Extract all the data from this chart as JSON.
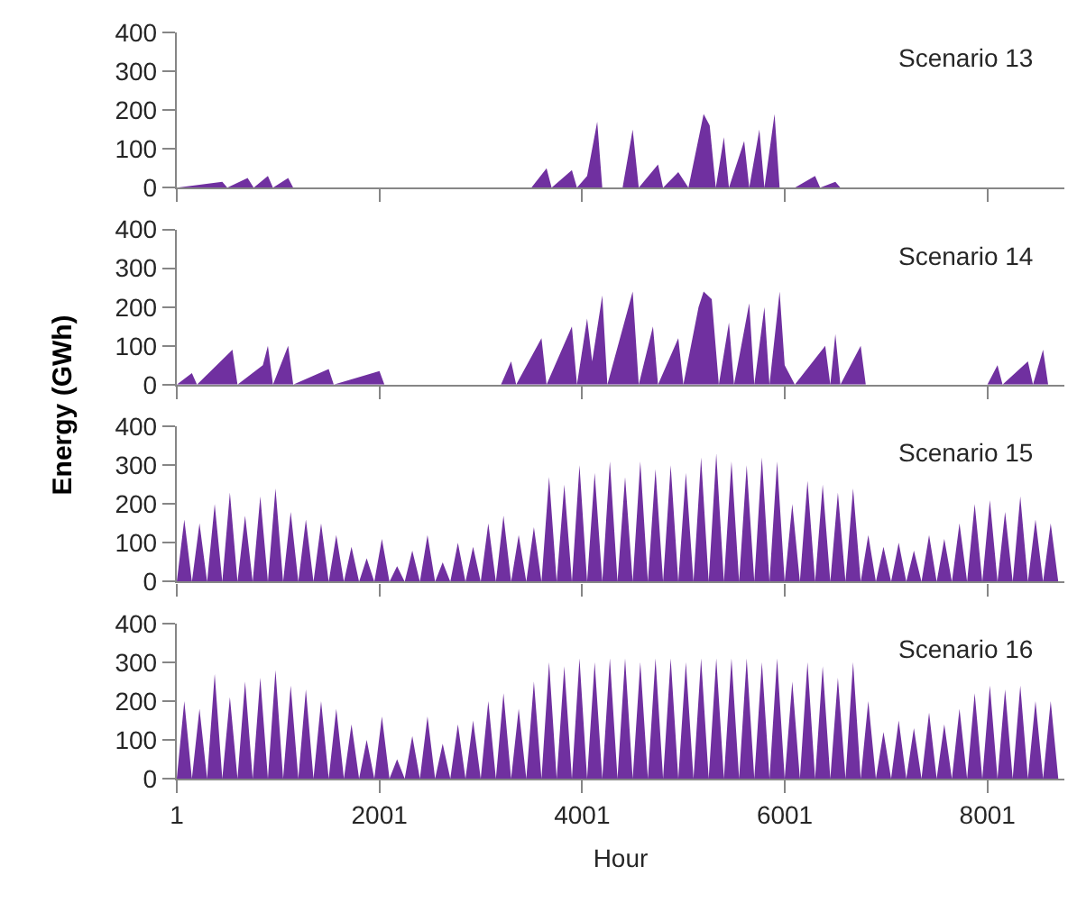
{
  "chart_data": [
    {
      "type": "area",
      "x": [
        1,
        450,
        500,
        700,
        760,
        900,
        950,
        1100,
        1150,
        3500,
        3650,
        3700,
        3900,
        3950,
        4050,
        4150,
        4200,
        4400,
        4500,
        4560,
        4750,
        4800,
        4950,
        5050,
        5200,
        5260,
        5320,
        5400,
        5450,
        5600,
        5650,
        5750,
        5800,
        5900,
        5950,
        6100,
        6300,
        6350,
        6500,
        6550,
        8760
      ],
      "series": [
        {
          "color": "#7030a0",
          "values": [
            0,
            15,
            0,
            25,
            0,
            30,
            0,
            25,
            0,
            0,
            50,
            0,
            45,
            0,
            30,
            170,
            0,
            0,
            150,
            0,
            60,
            0,
            40,
            0,
            190,
            160,
            0,
            130,
            0,
            120,
            0,
            150,
            0,
            190,
            0,
            0,
            30,
            0,
            15,
            0,
            0
          ]
        }
      ],
      "xlim": [
        1,
        8760
      ],
      "xticks": [
        {
          "value": 1,
          "label": null
        },
        {
          "value": 2001,
          "label": null
        },
        {
          "value": 4001,
          "label": null
        },
        {
          "value": 6001,
          "label": null
        },
        {
          "value": 8001,
          "label": null
        }
      ],
      "ylim": [
        0,
        400
      ],
      "yticks": [
        0,
        100,
        200,
        300,
        400
      ],
      "tick_labels": "y",
      "annotations": [
        "Scenario 13"
      ]
    },
    {
      "type": "area",
      "x": [
        1,
        150,
        200,
        550,
        600,
        850,
        900,
        950,
        1100,
        1150,
        1500,
        1550,
        2001,
        2050,
        3200,
        3300,
        3350,
        3600,
        3650,
        3900,
        3950,
        4050,
        4100,
        4200,
        4250,
        4500,
        4560,
        4700,
        4750,
        4950,
        5000,
        5150,
        5200,
        5280,
        5350,
        5450,
        5500,
        5650,
        5700,
        5800,
        5850,
        5950,
        6000,
        6100,
        6400,
        6450,
        6500,
        6550,
        6750,
        6800,
        8000,
        8100,
        8150,
        8400,
        8450,
        8550,
        8600,
        8760
      ],
      "series": [
        {
          "color": "#7030a0",
          "values": [
            0,
            30,
            0,
            90,
            0,
            50,
            100,
            0,
            100,
            0,
            40,
            0,
            35,
            0,
            0,
            60,
            0,
            120,
            0,
            150,
            0,
            170,
            60,
            230,
            0,
            240,
            0,
            150,
            0,
            120,
            0,
            200,
            240,
            220,
            0,
            160,
            0,
            210,
            0,
            200,
            0,
            240,
            50,
            0,
            100,
            0,
            130,
            0,
            100,
            0,
            0,
            50,
            0,
            60,
            0,
            90,
            0,
            0
          ]
        }
      ],
      "xlim": [
        1,
        8760
      ],
      "xticks": [
        {
          "value": 1,
          "label": null
        },
        {
          "value": 2001,
          "label": null
        },
        {
          "value": 4001,
          "label": null
        },
        {
          "value": 6001,
          "label": null
        },
        {
          "value": 8001,
          "label": null
        }
      ],
      "ylim": [
        0,
        400
      ],
      "yticks": [
        0,
        100,
        200,
        300,
        400
      ],
      "tick_labels": "y",
      "ylabel": "Energy (GWh)",
      "annotations": [
        "Scenario 14"
      ]
    },
    {
      "type": "area",
      "x": [
        1,
        75,
        150,
        225,
        300,
        375,
        450,
        525,
        600,
        675,
        750,
        825,
        900,
        975,
        1050,
        1125,
        1200,
        1275,
        1350,
        1425,
        1500,
        1575,
        1650,
        1725,
        1800,
        1875,
        1950,
        2025,
        2100,
        2175,
        2250,
        2325,
        2400,
        2475,
        2550,
        2625,
        2700,
        2775,
        2850,
        2925,
        3000,
        3075,
        3150,
        3225,
        3300,
        3375,
        3450,
        3525,
        3600,
        3675,
        3750,
        3825,
        3900,
        3975,
        4050,
        4125,
        4200,
        4275,
        4350,
        4425,
        4500,
        4575,
        4650,
        4725,
        4800,
        4875,
        4950,
        5025,
        5100,
        5175,
        5250,
        5325,
        5400,
        5475,
        5550,
        5625,
        5700,
        5775,
        5850,
        5925,
        6000,
        6075,
        6150,
        6225,
        6300,
        6375,
        6450,
        6525,
        6600,
        6675,
        6750,
        6825,
        6900,
        6975,
        7050,
        7125,
        7200,
        7275,
        7350,
        7425,
        7500,
        7575,
        7650,
        7725,
        7800,
        7875,
        7950,
        8025,
        8100,
        8175,
        8250,
        8325,
        8400,
        8475,
        8550,
        8625,
        8700,
        8760
      ],
      "series": [
        {
          "color": "#7030a0",
          "values": [
            0,
            160,
            0,
            150,
            0,
            200,
            0,
            230,
            0,
            170,
            0,
            220,
            0,
            240,
            0,
            180,
            0,
            160,
            0,
            150,
            0,
            120,
            0,
            90,
            0,
            60,
            0,
            110,
            0,
            40,
            0,
            80,
            0,
            120,
            0,
            50,
            0,
            100,
            0,
            90,
            0,
            150,
            0,
            170,
            0,
            120,
            0,
            140,
            0,
            270,
            0,
            250,
            0,
            300,
            0,
            280,
            0,
            310,
            0,
            270,
            0,
            310,
            0,
            290,
            0,
            300,
            0,
            280,
            0,
            320,
            0,
            330,
            0,
            310,
            0,
            300,
            0,
            320,
            0,
            310,
            0,
            200,
            0,
            260,
            0,
            250,
            0,
            230,
            0,
            240,
            0,
            120,
            0,
            90,
            0,
            100,
            0,
            80,
            0,
            120,
            0,
            110,
            0,
            150,
            0,
            200,
            0,
            210,
            0,
            180,
            0,
            220,
            0,
            160,
            0,
            150,
            0,
            0
          ]
        }
      ],
      "xlim": [
        1,
        8760
      ],
      "xticks": [
        {
          "value": 1,
          "label": null
        },
        {
          "value": 2001,
          "label": null
        },
        {
          "value": 4001,
          "label": null
        },
        {
          "value": 6001,
          "label": null
        },
        {
          "value": 8001,
          "label": null
        }
      ],
      "ylim": [
        0,
        400
      ],
      "yticks": [
        0,
        100,
        200,
        300,
        400
      ],
      "tick_labels": "y",
      "annotations": [
        "Scenario 15"
      ]
    },
    {
      "type": "area",
      "x": [
        1,
        75,
        150,
        225,
        300,
        375,
        450,
        525,
        600,
        675,
        750,
        825,
        900,
        975,
        1050,
        1125,
        1200,
        1275,
        1350,
        1425,
        1500,
        1575,
        1650,
        1725,
        1800,
        1875,
        1950,
        2025,
        2100,
        2175,
        2250,
        2325,
        2400,
        2475,
        2550,
        2625,
        2700,
        2775,
        2850,
        2925,
        3000,
        3075,
        3150,
        3225,
        3300,
        3375,
        3450,
        3525,
        3600,
        3675,
        3750,
        3825,
        3900,
        3975,
        4050,
        4125,
        4200,
        4275,
        4350,
        4425,
        4500,
        4575,
        4650,
        4725,
        4800,
        4875,
        4950,
        5025,
        5100,
        5175,
        5250,
        5325,
        5400,
        5475,
        5550,
        5625,
        5700,
        5775,
        5850,
        5925,
        6000,
        6075,
        6150,
        6225,
        6300,
        6375,
        6450,
        6525,
        6600,
        6675,
        6750,
        6825,
        6900,
        6975,
        7050,
        7125,
        7200,
        7275,
        7350,
        7425,
        7500,
        7575,
        7650,
        7725,
        7800,
        7875,
        7950,
        8025,
        8100,
        8175,
        8250,
        8325,
        8400,
        8475,
        8550,
        8625,
        8700,
        8760
      ],
      "series": [
        {
          "color": "#7030a0",
          "values": [
            0,
            200,
            0,
            180,
            0,
            270,
            0,
            210,
            0,
            250,
            0,
            260,
            0,
            280,
            0,
            240,
            0,
            230,
            0,
            200,
            0,
            180,
            0,
            140,
            0,
            100,
            0,
            160,
            0,
            50,
            0,
            110,
            0,
            160,
            0,
            90,
            0,
            140,
            0,
            150,
            0,
            200,
            0,
            220,
            0,
            180,
            0,
            250,
            0,
            300,
            0,
            290,
            0,
            310,
            0,
            300,
            0,
            310,
            0,
            310,
            0,
            300,
            0,
            310,
            0,
            310,
            0,
            300,
            0,
            310,
            0,
            310,
            0,
            310,
            0,
            310,
            0,
            300,
            0,
            310,
            0,
            250,
            0,
            300,
            0,
            290,
            0,
            260,
            0,
            300,
            0,
            200,
            0,
            120,
            0,
            150,
            0,
            130,
            0,
            170,
            0,
            140,
            0,
            180,
            0,
            220,
            0,
            240,
            0,
            230,
            0,
            240,
            0,
            200,
            0,
            200,
            0,
            0
          ]
        }
      ],
      "xlim": [
        1,
        8760
      ],
      "xticks": [
        1,
        2001,
        4001,
        6001,
        8001
      ],
      "ylim": [
        0,
        400
      ],
      "yticks": [
        0,
        100,
        200,
        300,
        400
      ],
      "xlabel": "Hour",
      "annotations": [
        "Scenario 16"
      ]
    }
  ]
}
